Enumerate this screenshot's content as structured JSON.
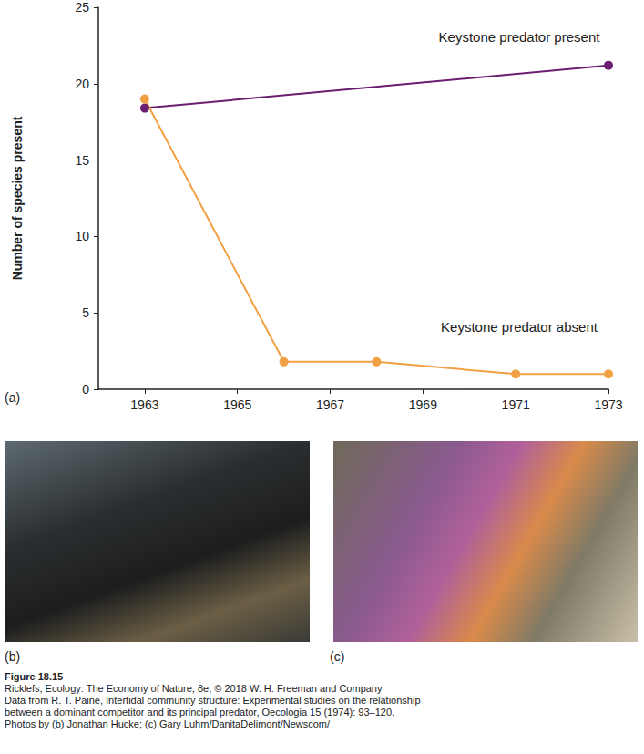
{
  "chart_data": {
    "type": "line",
    "y_label": "Number of species present",
    "series": [
      {
        "name": "Keystone predator present",
        "color": "#6b1d6f",
        "marker": "circle",
        "x": [
          1963,
          1973
        ],
        "values": [
          18.4,
          21.2
        ]
      },
      {
        "name": "Keystone predator absent",
        "color": "#f2a044",
        "marker": "circle",
        "x": [
          1963,
          1966,
          1968,
          1971,
          1973
        ],
        "values": [
          19,
          1.8,
          1.8,
          1,
          1
        ]
      }
    ],
    "xlim": [
      1962,
      1973
    ],
    "xticks": [
      1963,
      1965,
      1967,
      1969,
      1971,
      1973
    ],
    "ylim": [
      0,
      25
    ],
    "yticks": [
      0,
      5,
      10,
      15,
      20,
      25
    ],
    "grid": false
  },
  "panel_labels": [
    "(a)",
    "(b)",
    "(c)"
  ],
  "caption": {
    "title": "Figure 18.15",
    "lines": [
      "Ricklefs, Ecology: The Economy of Nature, 8e, © 2018 W. H. Freeman and Company",
      "Data from R. T. Paine, Intertidal community structure: Experimental studies on the relationship",
      "between a dominant competitor and its principal predator, Oecologia 15 (1974): 93–120.",
      "Photos by (b) Jonathan Hucke; (c) Gary Luhm/DanitaDelimont/Newscom/"
    ]
  }
}
